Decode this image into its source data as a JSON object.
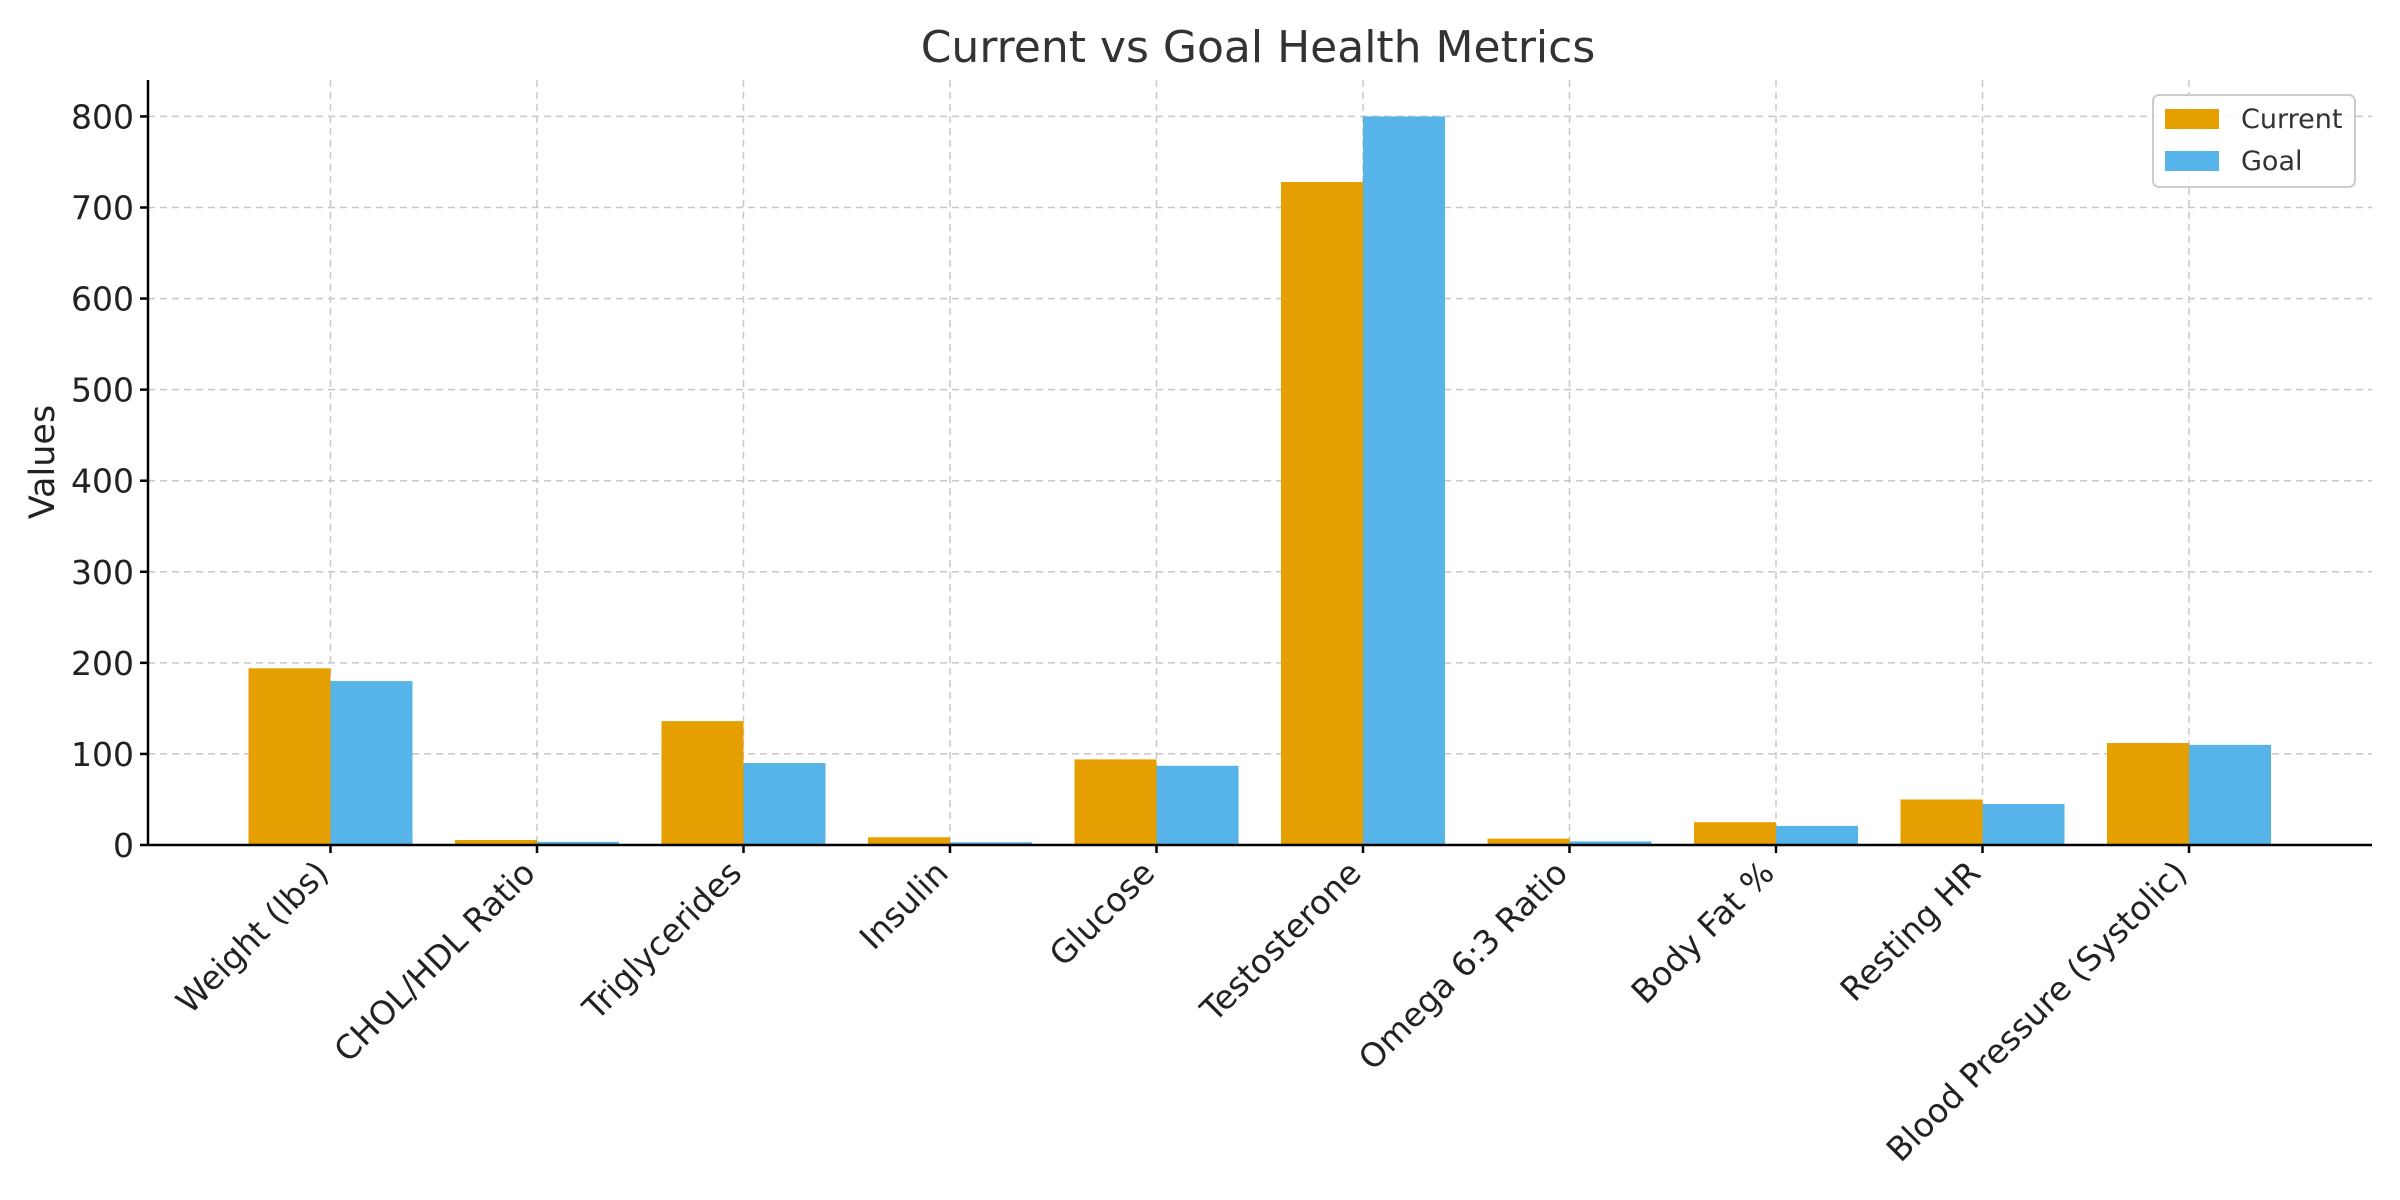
{
  "chart_data": {
    "type": "bar",
    "title": "Current vs Goal Health Metrics",
    "xlabel": "",
    "ylabel": "Values",
    "ylim": [
      0,
      840
    ],
    "yticks": [
      0,
      100,
      200,
      300,
      400,
      500,
      600,
      700,
      800
    ],
    "grid": true,
    "legend_position": "top-right",
    "categories": [
      "Weight (lbs)",
      "CHOL/HDL Ratio",
      "Triglycerides",
      "Insulin",
      "Glucose",
      "Testosterone",
      "Omega 6:3 Ratio",
      "Body Fat %",
      "Resting HR",
      "Blood Pressure (Systolic)"
    ],
    "series": [
      {
        "name": "Current",
        "color": "#E69F00",
        "values": [
          194,
          5.5,
          136,
          8.5,
          94,
          728,
          7,
          25,
          50,
          112
        ]
      },
      {
        "name": "Goal",
        "color": "#56B4E9",
        "values": [
          180,
          3.5,
          90,
          3,
          87,
          800,
          4,
          21,
          45,
          110
        ]
      }
    ]
  }
}
